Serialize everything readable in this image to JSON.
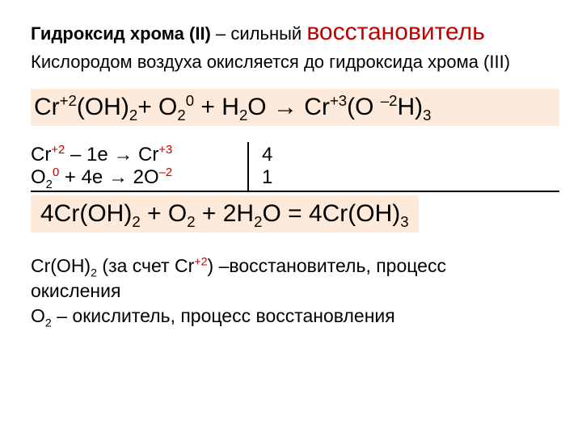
{
  "colors": {
    "accent_red": "#c00000",
    "highlight_bg": "#fdeada",
    "text": "#000000",
    "background": "#ffffff"
  },
  "title": {
    "bold_part": "Гидроксид  хрома (II)",
    "plain_part": " – сильный ",
    "reducer_word": "восстановитель"
  },
  "subtitle": "Кислородом воздуха окисляется до гидроксида хрома (III)",
  "equation1": {
    "p1": "Cr",
    "sup1": "+2",
    "p2": "(OH)",
    "sub2": "2",
    "p3": "+  O",
    "sub3": "2",
    "sup3": "0",
    "p4": "  +  H",
    "sub4": "2",
    "p5": "O → Cr",
    "sup5": "+3",
    "p6": "(O ",
    "sup6": "–2",
    "p7": "H)",
    "sub7": "3"
  },
  "half1": {
    "left_a": "Cr",
    "left_sup_a": "+2",
    "left_b": "  –  1e → Cr",
    "left_sup_b": "+3",
    "coef": "4"
  },
  "half2": {
    "left_a": "O",
    "left_sub_a": "2",
    "left_sup_a": "0",
    "left_b": "  +  4e → 2O",
    "left_sup_b": "–2",
    "coef": "1"
  },
  "equation2": {
    "p1": "4Cr(OH)",
    "sub1": "2",
    "p2": "  +  O",
    "sub2": "2",
    "p3": "  +  2H",
    "sub3": "2",
    "p4": "O  =  4Cr(OH)",
    "sub4": "3"
  },
  "desc": {
    "l1a": "Cr(OH)",
    "l1sub": "2",
    "l1b": " (за счет Cr",
    "l1sup": "+2",
    "l1c": ") –восстановитель, процесс",
    "l2": "окисления",
    "l3a": "O",
    "l3sub": "2",
    "l3b": "  – окислитель, процесс восстановления"
  }
}
